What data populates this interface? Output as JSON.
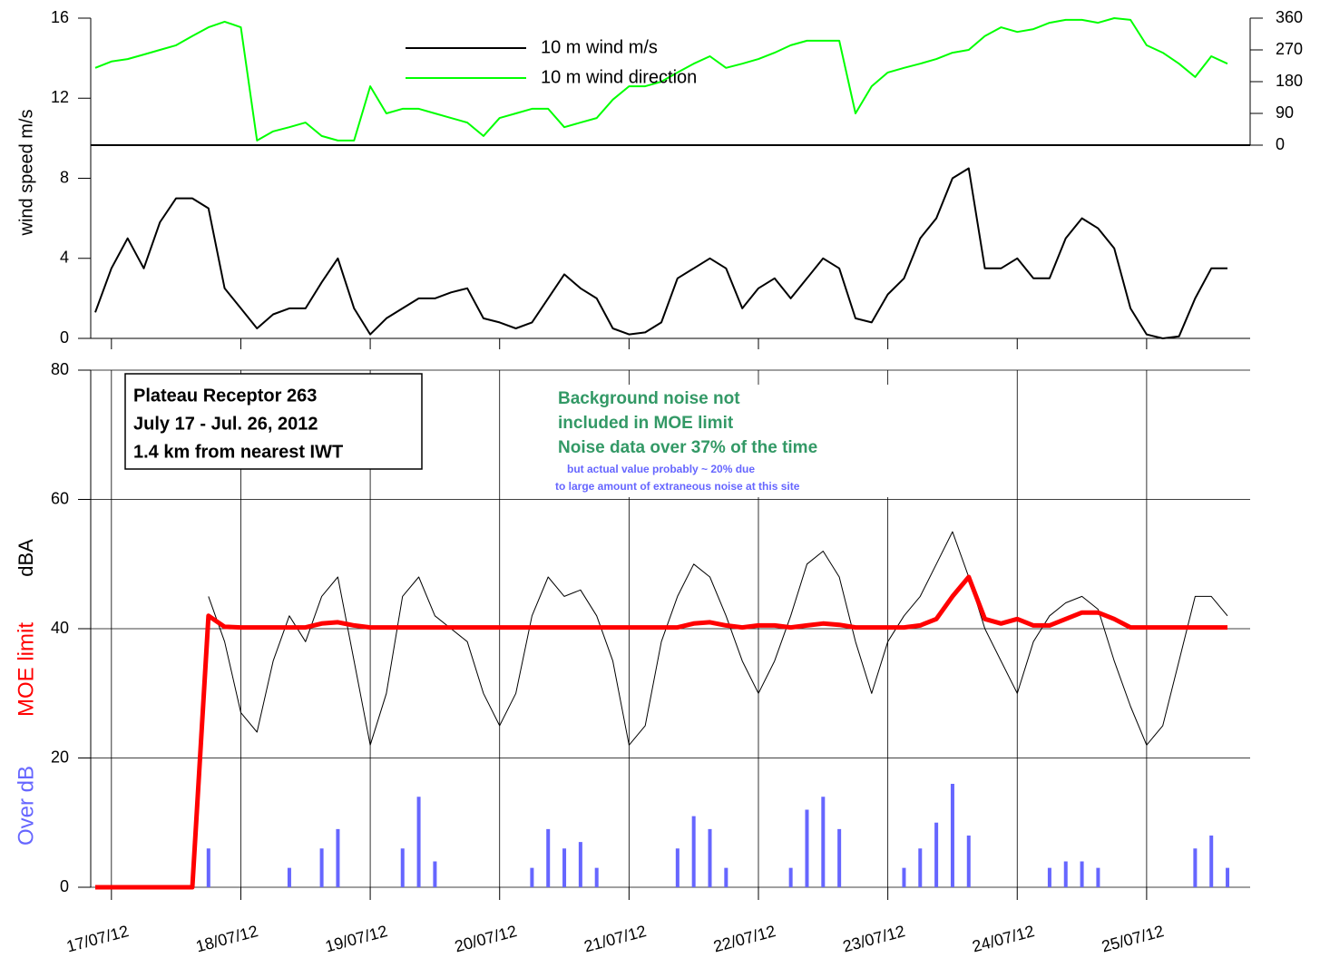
{
  "chart_data": [
    {
      "type": "line",
      "ylabel": "wind speed m/s",
      "x": [
        -0.125,
        0,
        0.125,
        0.25,
        0.375,
        0.5,
        0.625,
        0.75,
        0.875,
        1,
        1.125,
        1.25,
        1.375,
        1.5,
        1.625,
        1.75,
        1.875,
        2,
        2.125,
        2.25,
        2.375,
        2.5,
        2.625,
        2.75,
        2.875,
        3,
        3.125,
        3.25,
        3.375,
        3.5,
        3.625,
        3.75,
        3.875,
        4,
        4.125,
        4.25,
        4.375,
        4.5,
        4.625,
        4.75,
        4.875,
        5,
        5.125,
        5.25,
        5.375,
        5.5,
        5.625,
        5.75,
        5.875,
        6,
        6.125,
        6.25,
        6.375,
        6.5,
        6.625,
        6.75,
        6.875,
        7,
        7.125,
        7.25,
        7.375,
        7.5,
        7.625,
        7.75,
        7.875,
        8,
        8.125,
        8.25,
        8.375,
        8.5,
        8.625
      ],
      "xlim": [
        -0.16,
        8.8
      ],
      "ylim": [
        0,
        16
      ],
      "yticks": [
        0,
        4,
        8,
        12,
        16
      ],
      "y2lim": [
        0,
        360
      ],
      "y2ticks": [
        0,
        90,
        180,
        270,
        360
      ],
      "series": [
        {
          "name": "10 m wind m/s",
          "color": "#000000",
          "values": [
            1.3,
            3.5,
            5.0,
            3.5,
            5.8,
            7.0,
            7.0,
            6.5,
            2.5,
            1.5,
            0.5,
            1.2,
            1.5,
            1.5,
            2.8,
            4.0,
            1.5,
            0.2,
            1.0,
            1.5,
            2.0,
            2.0,
            2.3,
            2.5,
            1.0,
            0.8,
            0.5,
            0.8,
            2.0,
            3.2,
            2.5,
            2.0,
            0.5,
            0.2,
            0.3,
            0.8,
            3.0,
            3.5,
            4.0,
            3.5,
            1.5,
            2.5,
            3.0,
            2.0,
            3.0,
            4.0,
            3.5,
            1.0,
            0.8,
            2.2,
            3.0,
            5.0,
            6.0,
            8.0,
            8.5,
            3.5,
            3.5,
            4.0,
            3.0,
            3.0,
            5.0,
            6.0,
            5.5,
            4.5,
            1.5,
            0.2,
            0.0,
            0.1,
            2.0,
            3.5,
            3.5
          ]
        },
        {
          "name": "10 m wind direction",
          "color": "#00ff00",
          "axis": "y2",
          "values": [
            219,
            237,
            244,
            257,
            270,
            283,
            309,
            334,
            350,
            334,
            13,
            39,
            51,
            64,
            26,
            13,
            13,
            167,
            90,
            103,
            103,
            90,
            77,
            64,
            26,
            77,
            90,
            103,
            103,
            51,
            64,
            77,
            129,
            167,
            167,
            180,
            206,
            231,
            252,
            219,
            231,
            244,
            262,
            283,
            296,
            296,
            296,
            90,
            167,
            206,
            219,
            231,
            244,
            262,
            270,
            309,
            334,
            321,
            329,
            347,
            355,
            355,
            347,
            360,
            355,
            283,
            262,
            231,
            193,
            252,
            231
          ]
        }
      ]
    },
    {
      "type": "line",
      "ylabel": "dBA",
      "x": [
        -0.125,
        0,
        0.125,
        0.25,
        0.375,
        0.5,
        0.625,
        0.75,
        0.875,
        1,
        1.125,
        1.25,
        1.375,
        1.5,
        1.625,
        1.75,
        1.875,
        2,
        2.125,
        2.25,
        2.375,
        2.5,
        2.625,
        2.75,
        2.875,
        3,
        3.125,
        3.25,
        3.375,
        3.5,
        3.625,
        3.75,
        3.875,
        4,
        4.125,
        4.25,
        4.375,
        4.5,
        4.625,
        4.75,
        4.875,
        5,
        5.125,
        5.25,
        5.375,
        5.5,
        5.625,
        5.75,
        5.875,
        6,
        6.125,
        6.25,
        6.375,
        6.5,
        6.625,
        6.75,
        6.875,
        7,
        7.125,
        7.25,
        7.375,
        7.5,
        7.625,
        7.75,
        7.875,
        8,
        8.125,
        8.25,
        8.375,
        8.5,
        8.625
      ],
      "xlim": [
        -0.16,
        8.8
      ],
      "xticks": [
        {
          "value": 0,
          "label": "17/07/12"
        },
        {
          "value": 1,
          "label": "18/07/12"
        },
        {
          "value": 2,
          "label": "19/07/12"
        },
        {
          "value": 3,
          "label": "20/07/12"
        },
        {
          "value": 4,
          "label": "21/07/12"
        },
        {
          "value": 5,
          "label": "22/07/12"
        },
        {
          "value": 6,
          "label": "23/07/12"
        },
        {
          "value": 7,
          "label": "24/07/12"
        },
        {
          "value": 8,
          "label": "25/07/12"
        }
      ],
      "ylim": [
        0,
        80
      ],
      "yticks": [
        0,
        20,
        40,
        60,
        80
      ],
      "grid": true,
      "series": [
        {
          "type": "bar",
          "name": "Over dB",
          "color": "#6666ff",
          "values": [
            0,
            0,
            0,
            0,
            0,
            0,
            0,
            6,
            0,
            0,
            0,
            0,
            3,
            0,
            6,
            9,
            0,
            0,
            0,
            6,
            14,
            4,
            0,
            0,
            0,
            0,
            0,
            3,
            9,
            6,
            7,
            3,
            0,
            0,
            0,
            0,
            6,
            11,
            9,
            3,
            0,
            0,
            0,
            3,
            12,
            14,
            9,
            0,
            0,
            0,
            3,
            6,
            10,
            16,
            8,
            0,
            0,
            0,
            0,
            3,
            4,
            4,
            3,
            0,
            0,
            0,
            0,
            0,
            6,
            8,
            3
          ]
        },
        {
          "color": "#000000",
          "values": [
            null,
            null,
            null,
            null,
            null,
            null,
            null,
            45,
            38,
            27,
            24,
            35,
            42,
            38,
            45,
            48,
            35,
            22,
            30,
            45,
            48,
            42,
            40,
            38,
            30,
            25,
            30,
            42,
            48,
            45,
            46,
            42,
            35,
            22,
            25,
            38,
            45,
            50,
            48,
            42,
            35,
            30,
            35,
            42,
            50,
            52,
            48,
            38,
            30,
            38,
            42,
            45,
            50,
            55,
            48,
            40,
            35,
            30,
            38,
            42,
            44,
            45,
            43,
            35,
            28,
            22,
            25,
            35,
            45,
            45,
            42
          ]
        },
        {
          "name": "MOE limit",
          "color": "#ff0000",
          "values": [
            0,
            0,
            0,
            0,
            0,
            0,
            0,
            42,
            40.3,
            40.2,
            40.2,
            40.2,
            40.2,
            40.2,
            40.8,
            41,
            40.5,
            40.2,
            40.2,
            40.2,
            40.2,
            40.2,
            40.2,
            40.2,
            40.2,
            40.2,
            40.2,
            40.2,
            40.2,
            40.2,
            40.2,
            40.2,
            40.2,
            40.2,
            40.2,
            40.2,
            40.2,
            40.8,
            41,
            40.5,
            40.2,
            40.5,
            40.5,
            40.2,
            40.5,
            40.8,
            40.6,
            40.2,
            40.2,
            40.2,
            40.2,
            40.5,
            41.5,
            45,
            48,
            41.5,
            40.8,
            41.5,
            40.5,
            40.5,
            41.5,
            42.5,
            42.5,
            41.5,
            40.2,
            40.2,
            40.2,
            40.2,
            40.2,
            40.2,
            40.2
          ]
        }
      ],
      "box": [
        "Plateau Receptor 263",
        "July 17 - Jul. 26, 2012",
        "1.4 km from nearest IWT"
      ],
      "note": {
        "color": "#339966",
        "lines": [
          "Background noise not",
          "included in MOE limit",
          "Noise data over 37% of the time"
        ]
      },
      "footnote": {
        "color": "#6666ff",
        "lines": [
          "but actual value probably ~ 20% due",
          "to large amount of extraneous noise at this site"
        ]
      }
    }
  ]
}
